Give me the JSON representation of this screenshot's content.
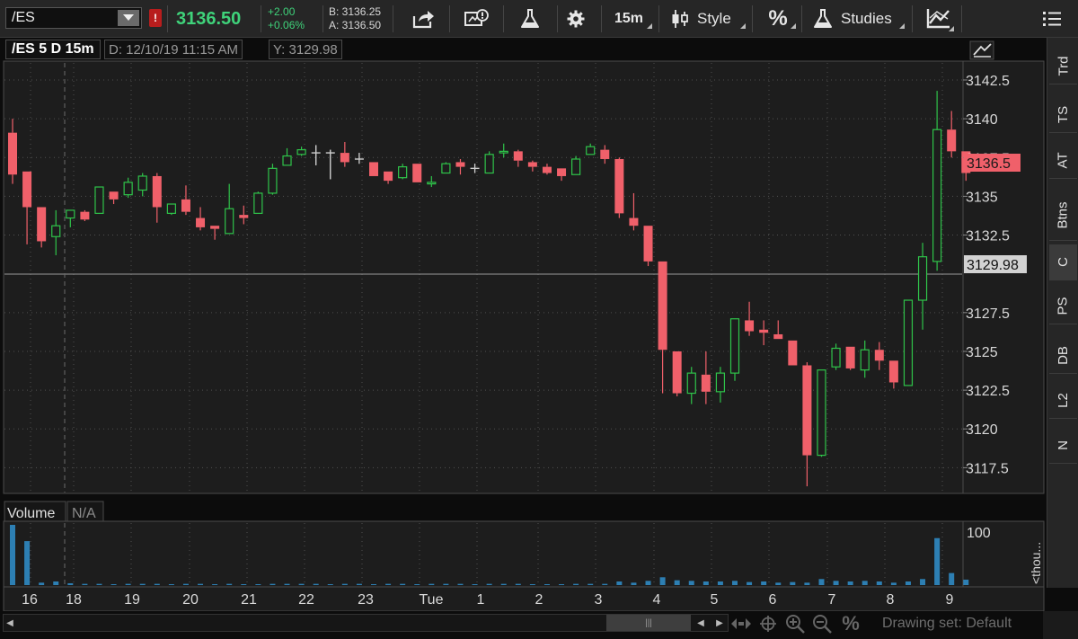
{
  "toolbar": {
    "symbol": "/ES",
    "alert_flag": "!",
    "last_price": "3136.50",
    "net_change": "+2.00",
    "pct_change": "+0.06%",
    "bid": "B: 3136.25",
    "ask": "A: 3136.50",
    "timeframe": "15m",
    "style_label": "Style",
    "percent_label": "%",
    "studies_label": "Studies"
  },
  "chart_header": {
    "symbol_period": "/ES 5 D 15m",
    "date_readout": "D: 12/10/19 11:15 AM",
    "y_readout": "Y: 3129.98"
  },
  "price_panel": {
    "y_ticks": [
      "3142.5",
      "3140",
      "3137.5",
      "3135",
      "3132.5",
      "3127.5",
      "3125",
      "3122.5",
      "3120",
      "3117.5"
    ],
    "current_price_label": "3136.5",
    "crosshair_price_label": "3129.98",
    "colors": {
      "up": "#2fc44a",
      "down": "#f0606a",
      "doji": "#cfcfcf",
      "bg": "#1d1d1d",
      "grid": "#505050"
    }
  },
  "volume_panel": {
    "title": "Volume",
    "value": "N/A",
    "y_tick": "100",
    "unit_label": "<thou...",
    "bar_color": "#2d7fb3"
  },
  "x_axis": {
    "labels": [
      "16",
      "18",
      "19",
      "20",
      "21",
      "22",
      "23",
      "Tue",
      "1",
      "2",
      "3",
      "4",
      "5",
      "6",
      "7",
      "8",
      "9"
    ]
  },
  "right_tabs": [
    "Trd",
    "TS",
    "AT",
    "Btns",
    "C",
    "PS",
    "DB",
    "L2",
    "N"
  ],
  "bottom_bar": {
    "drawing_set": "Drawing set: Default",
    "percent_icon": "%"
  },
  "chart_data": {
    "type": "candlestick",
    "y_range": [
      3115.9,
      3143.6
    ],
    "series": [
      {
        "o": 3139.1,
        "h": 3140.0,
        "l": 3135.8,
        "c": 3136.4
      },
      {
        "o": 3136.6,
        "h": 3136.6,
        "l": 3131.9,
        "c": 3134.3
      },
      {
        "o": 3134.3,
        "h": 3134.3,
        "l": 3131.7,
        "c": 3132.1
      },
      {
        "o": 3132.4,
        "h": 3134.1,
        "l": 3131.2,
        "c": 3133.1
      },
      {
        "o": 3133.6,
        "h": 3134.1,
        "l": 3133.0,
        "c": 3134.1
      },
      {
        "o": 3134.0,
        "h": 3134.1,
        "l": 3133.4,
        "c": 3133.5
      },
      {
        "o": 3133.9,
        "h": 3135.6,
        "l": 3133.9,
        "c": 3135.6
      },
      {
        "o": 3135.3,
        "h": 3135.3,
        "l": 3134.5,
        "c": 3134.8
      },
      {
        "o": 3135.1,
        "h": 3136.2,
        "l": 3134.9,
        "c": 3135.9
      },
      {
        "o": 3135.4,
        "h": 3136.5,
        "l": 3135.0,
        "c": 3136.3
      },
      {
        "o": 3136.3,
        "h": 3136.5,
        "l": 3133.3,
        "c": 3134.3
      },
      {
        "o": 3133.9,
        "h": 3134.5,
        "l": 3133.8,
        "c": 3134.5
      },
      {
        "o": 3134.8,
        "h": 3135.7,
        "l": 3133.8,
        "c": 3134.0
      },
      {
        "o": 3133.6,
        "h": 3134.3,
        "l": 3132.8,
        "c": 3133.0
      },
      {
        "o": 3133.1,
        "h": 3133.1,
        "l": 3132.2,
        "c": 3132.9
      },
      {
        "o": 3132.6,
        "h": 3135.8,
        "l": 3132.6,
        "c": 3134.2
      },
      {
        "o": 3133.8,
        "h": 3134.4,
        "l": 3133.2,
        "c": 3133.6
      },
      {
        "o": 3133.9,
        "h": 3135.3,
        "l": 3133.9,
        "c": 3135.2
      },
      {
        "o": 3135.2,
        "h": 3137.1,
        "l": 3135.1,
        "c": 3136.8
      },
      {
        "o": 3137.0,
        "h": 3138.1,
        "l": 3137.0,
        "c": 3137.6
      },
      {
        "o": 3137.7,
        "h": 3138.2,
        "l": 3137.6,
        "c": 3138.0
      },
      {
        "o": 3137.8,
        "h": 3138.3,
        "l": 3137.0,
        "c": 3137.8
      },
      {
        "o": 3137.8,
        "h": 3138.0,
        "l": 3136.1,
        "c": 3137.8
      },
      {
        "o": 3137.8,
        "h": 3138.5,
        "l": 3136.9,
        "c": 3137.2
      },
      {
        "o": 3137.4,
        "h": 3137.8,
        "l": 3137.1,
        "c": 3137.4
      },
      {
        "o": 3137.2,
        "h": 3137.2,
        "l": 3136.3,
        "c": 3136.3
      },
      {
        "o": 3136.6,
        "h": 3136.6,
        "l": 3135.8,
        "c": 3136.0
      },
      {
        "o": 3136.2,
        "h": 3137.1,
        "l": 3136.1,
        "c": 3136.9
      },
      {
        "o": 3137.1,
        "h": 3137.1,
        "l": 3135.9,
        "c": 3135.9
      },
      {
        "o": 3135.8,
        "h": 3136.3,
        "l": 3135.6,
        "c": 3135.9
      },
      {
        "o": 3136.5,
        "h": 3137.2,
        "l": 3136.5,
        "c": 3137.1
      },
      {
        "o": 3137.2,
        "h": 3137.4,
        "l": 3136.4,
        "c": 3136.9
      },
      {
        "o": 3136.8,
        "h": 3137.1,
        "l": 3136.5,
        "c": 3136.8
      },
      {
        "o": 3136.5,
        "h": 3137.9,
        "l": 3136.5,
        "c": 3137.7
      },
      {
        "o": 3137.8,
        "h": 3138.4,
        "l": 3137.5,
        "c": 3137.9
      },
      {
        "o": 3137.9,
        "h": 3138.0,
        "l": 3136.9,
        "c": 3137.3
      },
      {
        "o": 3137.2,
        "h": 3137.3,
        "l": 3136.6,
        "c": 3136.9
      },
      {
        "o": 3136.9,
        "h": 3137.1,
        "l": 3136.4,
        "c": 3136.5
      },
      {
        "o": 3136.8,
        "h": 3136.8,
        "l": 3136.0,
        "c": 3136.3
      },
      {
        "o": 3136.4,
        "h": 3137.6,
        "l": 3136.4,
        "c": 3137.4
      },
      {
        "o": 3137.7,
        "h": 3138.4,
        "l": 3137.7,
        "c": 3138.2
      },
      {
        "o": 3138.0,
        "h": 3138.3,
        "l": 3137.1,
        "c": 3137.4
      },
      {
        "o": 3137.4,
        "h": 3137.5,
        "l": 3133.6,
        "c": 3133.9
      },
      {
        "o": 3133.6,
        "h": 3135.2,
        "l": 3132.8,
        "c": 3133.1
      },
      {
        "o": 3133.1,
        "h": 3133.1,
        "l": 3130.5,
        "c": 3130.8
      },
      {
        "o": 3130.8,
        "h": 3130.8,
        "l": 3122.3,
        "c": 3125.1
      },
      {
        "o": 3125.0,
        "h": 3125.0,
        "l": 3122.1,
        "c": 3122.3
      },
      {
        "o": 3122.3,
        "h": 3124.0,
        "l": 3121.6,
        "c": 3123.6
      },
      {
        "o": 3123.5,
        "h": 3125.0,
        "l": 3121.6,
        "c": 3122.4
      },
      {
        "o": 3122.4,
        "h": 3124.0,
        "l": 3121.7,
        "c": 3123.6
      },
      {
        "o": 3123.6,
        "h": 3127.1,
        "l": 3123.1,
        "c": 3127.1
      },
      {
        "o": 3127.0,
        "h": 3128.2,
        "l": 3126.0,
        "c": 3126.3
      },
      {
        "o": 3126.4,
        "h": 3127.0,
        "l": 3125.4,
        "c": 3126.2
      },
      {
        "o": 3126.1,
        "h": 3127.0,
        "l": 3125.8,
        "c": 3125.8
      },
      {
        "o": 3125.7,
        "h": 3125.7,
        "l": 3124.1,
        "c": 3124.1
      },
      {
        "o": 3124.1,
        "h": 3124.3,
        "l": 3116.3,
        "c": 3118.3
      },
      {
        "o": 3118.3,
        "h": 3123.8,
        "l": 3118.2,
        "c": 3123.8
      },
      {
        "o": 3124.0,
        "h": 3125.5,
        "l": 3123.8,
        "c": 3125.2
      },
      {
        "o": 3125.3,
        "h": 3125.3,
        "l": 3123.8,
        "c": 3123.9
      },
      {
        "o": 3123.8,
        "h": 3125.7,
        "l": 3123.3,
        "c": 3125.1
      },
      {
        "o": 3125.1,
        "h": 3125.6,
        "l": 3123.8,
        "c": 3124.4
      },
      {
        "o": 3124.4,
        "h": 3124.4,
        "l": 3122.6,
        "c": 3123.0
      },
      {
        "o": 3122.8,
        "h": 3128.3,
        "l": 3122.8,
        "c": 3128.3
      },
      {
        "o": 3128.3,
        "h": 3132.0,
        "l": 3126.4,
        "c": 3131.1
      },
      {
        "o": 3130.8,
        "h": 3141.8,
        "l": 3130.2,
        "c": 3139.3
      },
      {
        "o": 3139.3,
        "h": 3140.5,
        "l": 3137.5,
        "c": 3137.9
      },
      {
        "o": 3137.9,
        "h": 3137.9,
        "l": 3136.0,
        "c": 3136.5
      }
    ],
    "volume": [
      100,
      73,
      4,
      6,
      3,
      2,
      2,
      1,
      2,
      2,
      2,
      1,
      2,
      2,
      1,
      2,
      1,
      1,
      2,
      2,
      2,
      2,
      1,
      2,
      2,
      1,
      2,
      2,
      1,
      2,
      2,
      2,
      1,
      2,
      2,
      2,
      1,
      1,
      1,
      2,
      2,
      2,
      6,
      4,
      7,
      13,
      8,
      7,
      6,
      6,
      7,
      5,
      6,
      4,
      5,
      4,
      10,
      7,
      6,
      7,
      6,
      4,
      6,
      10,
      78,
      20,
      9
    ]
  }
}
